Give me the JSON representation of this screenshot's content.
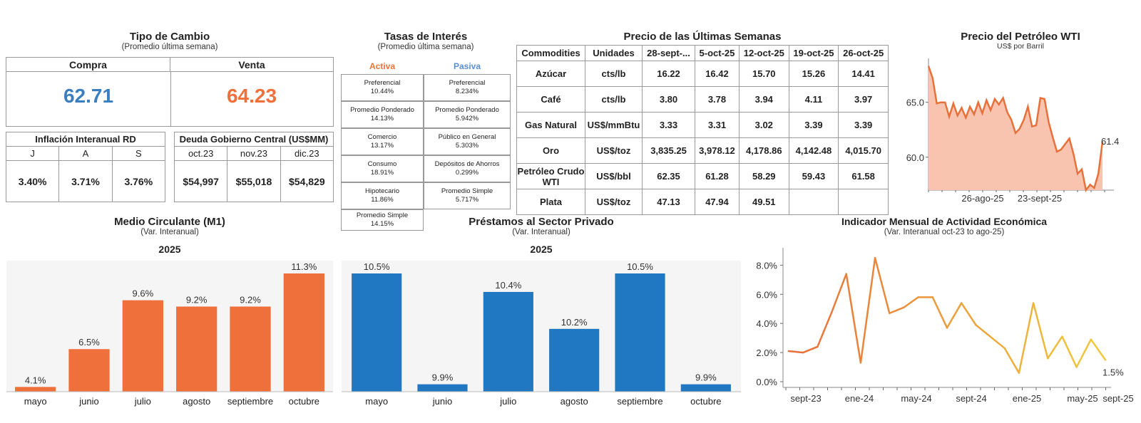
{
  "fx": {
    "title": "Tipo de Cambio",
    "subtitle": "(Promedio última semana)",
    "buy_label": "Compra",
    "sell_label": "Venta",
    "buy_value": "62.71",
    "sell_value": "64.23",
    "buy_color": "#3a7ebf",
    "sell_color": "#f0703c"
  },
  "inflation": {
    "title": "Inflación Interanual RD",
    "months": [
      "J",
      "A",
      "S"
    ],
    "values": [
      "3.40%",
      "3.71%",
      "3.76%"
    ]
  },
  "debt": {
    "title": "Deuda Gobierno Central (US$MM)",
    "months": [
      "oct.23",
      "nov.23",
      "dic.23"
    ],
    "values": [
      "$54,997",
      "$55,018",
      "$54,829"
    ]
  },
  "rates": {
    "title": "Tasas de Interés",
    "subtitle": "(Promedio última semana)",
    "active_label": "Activa",
    "passive_label": "Pasiva",
    "active": [
      {
        "label": "Preferencial",
        "value": "10.44%"
      },
      {
        "label": "Promedio Ponderado",
        "value": "14.13%"
      },
      {
        "label": "Comercio",
        "value": "13.17%"
      },
      {
        "label": "Consumo",
        "value": "18.91%"
      },
      {
        "label": "Hipotecario",
        "value": "11.86%"
      },
      {
        "label": "Promedio Simple",
        "value": "14.15%"
      }
    ],
    "passive": [
      {
        "label": "Preferencial",
        "value": "8.234%"
      },
      {
        "label": "Promedio Ponderado",
        "value": "5.942%"
      },
      {
        "label": "Público en General",
        "value": "5.303%"
      },
      {
        "label": "Depósitos de Ahorros",
        "value": "0.299%"
      },
      {
        "label": "Promedio Simple",
        "value": "5.717%"
      }
    ]
  },
  "commodities": {
    "title": "Precio de las Últimas Semanas",
    "headers": [
      "Commodities",
      "Unidades",
      "28-sept-...",
      "5-oct-25",
      "12-oct-25",
      "19-oct-25",
      "26-oct-25"
    ],
    "rows": [
      {
        "name": "Azúcar",
        "unit": "cts/lb",
        "values": [
          "16.22",
          "16.42",
          "15.70",
          "15.26",
          "14.41"
        ]
      },
      {
        "name": "Café",
        "unit": "cts/lb",
        "values": [
          "3.80",
          "3.78",
          "3.94",
          "4.11",
          "3.97"
        ]
      },
      {
        "name": "Gas Natural",
        "unit": "US$/mmBtu",
        "values": [
          "3.33",
          "3.31",
          "3.02",
          "3.39",
          "3.39"
        ]
      },
      {
        "name": "Oro",
        "unit": "US$/toz",
        "values": [
          "3,835.25",
          "3,978.12",
          "4,178.86",
          "4,142.48",
          "4,015.70"
        ]
      },
      {
        "name": "Petróleo Crudo WTI",
        "unit": "US$/bbl",
        "values": [
          "62.35",
          "61.28",
          "58.29",
          "59.43",
          "61.58"
        ]
      },
      {
        "name": "Plata",
        "unit": "US$/toz",
        "values": [
          "47.13",
          "47.94",
          "49.51",
          "",
          ""
        ]
      }
    ]
  },
  "chart_data": [
    {
      "id": "wti",
      "type": "area",
      "title": "Precio del Petróleo WTI",
      "subtitle": "US$ por Barril",
      "yticks": [
        "60.0",
        "65.0"
      ],
      "xticks": [
        "26-ago-25",
        "23-sept-25"
      ],
      "ylim": [
        57,
        69
      ],
      "values": [
        68.3,
        67.2,
        64.9,
        65.0,
        65.0,
        63.7,
        64.9,
        63.8,
        64.5,
        63.6,
        64.6,
        63.9,
        65.0,
        64.0,
        65.2,
        64.3,
        65.3,
        64.8,
        65.4,
        64.1,
        63.4,
        62.2,
        62.6,
        63.4,
        64.6,
        62.8,
        62.9,
        65.4,
        65.3,
        63.2,
        61.8,
        60.5,
        60.7,
        61.2,
        61.7,
        60.3,
        58.5,
        58.9,
        57.0,
        57.5,
        57.2,
        58.5,
        61.4
      ],
      "end_label": "61.4",
      "line_color": "#e8703a",
      "fill_color": "#f8c4b0"
    },
    {
      "id": "m1",
      "type": "bar",
      "title": "Medio Circulante (M1)",
      "subtitle": "(Var. Interanual)",
      "year": "2025",
      "categories": [
        "mayo",
        "junio",
        "julio",
        "agosto",
        "septiembre",
        "octubre"
      ],
      "values": [
        4.1,
        6.5,
        9.6,
        9.2,
        9.2,
        11.3
      ],
      "labels": [
        "4.1%",
        "6.5%",
        "9.6%",
        "9.2%",
        "9.2%",
        "11.3%"
      ],
      "ylim": [
        3.8,
        11.3
      ],
      "color": "#f0703c"
    },
    {
      "id": "loans",
      "type": "bar",
      "title": "Préstamos al Sector Privado",
      "subtitle": "(Var. Interanual)",
      "year": "2025",
      "categories": [
        "mayo",
        "junio",
        "julio",
        "agosto",
        "septiembre",
        "octubre"
      ],
      "values": [
        10.5,
        9.9,
        10.4,
        10.2,
        10.5,
        9.9
      ],
      "labels": [
        "10.5%",
        "9.9%",
        "10.4%",
        "10.2%",
        "10.5%",
        "9.9%"
      ],
      "ylim": [
        9.86,
        10.5
      ],
      "color": "#1f78c1"
    },
    {
      "id": "imae",
      "type": "line",
      "title": "Indicador Mensual de Actividad Económica",
      "subtitle": "(Var. Interanual oct-23 to ago-25)",
      "yticks": [
        "0.0%",
        "2.0%",
        "4.0%",
        "6.0%",
        "8.0%"
      ],
      "ylim": [
        0,
        8.8
      ],
      "xticks": [
        "sept-23",
        "ene-24",
        "may-24",
        "sept-24",
        "ene-25",
        "may-25",
        "sept-25"
      ],
      "values": [
        2.1,
        2.0,
        2.4,
        4.8,
        7.4,
        1.3,
        8.5,
        4.7,
        5.1,
        5.8,
        5.8,
        3.7,
        5.4,
        3.9,
        3.1,
        2.3,
        0.6,
        5.4,
        1.6,
        3.1,
        1.0,
        2.9,
        1.5
      ],
      "end_label": "1.5%"
    }
  ]
}
